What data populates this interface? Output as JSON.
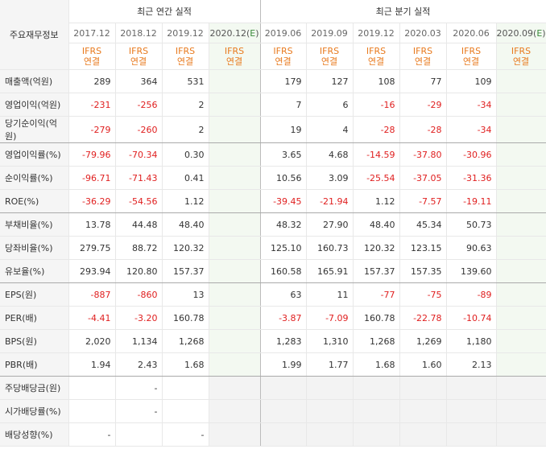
{
  "header": {
    "corner_label": "주요재무정보",
    "annual_title": "최근 연간 실적",
    "quarter_title": "최근 분기 실적",
    "annual_periods": [
      "2017.12",
      "2018.12",
      "2019.12",
      "2020.12(E)"
    ],
    "quarter_periods": [
      "2019.06",
      "2019.09",
      "2019.12",
      "2020.03",
      "2020.06",
      "2020.09(E)"
    ],
    "ifrs_line1": "IFRS",
    "ifrs_line2": "연결"
  },
  "rows": [
    {
      "label": "매출액(억원)",
      "values": [
        "289",
        "364",
        "531",
        "",
        "179",
        "127",
        "108",
        "77",
        "109",
        ""
      ]
    },
    {
      "label": "영업이익(억원)",
      "values": [
        "-231",
        "-256",
        "2",
        "",
        "7",
        "6",
        "-16",
        "-29",
        "-34",
        ""
      ]
    },
    {
      "label": "당기순이익(억원)",
      "values": [
        "-279",
        "-260",
        "2",
        "",
        "19",
        "4",
        "-28",
        "-28",
        "-34",
        ""
      ]
    },
    {
      "label": "영업이익률(%)",
      "values": [
        "-79.96",
        "-70.34",
        "0.30",
        "",
        "3.65",
        "4.68",
        "-14.59",
        "-37.80",
        "-30.96",
        ""
      ]
    },
    {
      "label": "순이익률(%)",
      "values": [
        "-96.71",
        "-71.43",
        "0.41",
        "",
        "10.56",
        "3.09",
        "-25.54",
        "-37.05",
        "-31.36",
        ""
      ]
    },
    {
      "label": "ROE(%)",
      "values": [
        "-36.29",
        "-54.56",
        "1.12",
        "",
        "-39.45",
        "-21.94",
        "1.12",
        "-7.57",
        "-19.11",
        ""
      ]
    },
    {
      "label": "부채비율(%)",
      "values": [
        "13.78",
        "44.48",
        "48.40",
        "",
        "48.32",
        "27.90",
        "48.40",
        "45.34",
        "50.73",
        ""
      ]
    },
    {
      "label": "당좌비율(%)",
      "values": [
        "279.75",
        "88.72",
        "120.32",
        "",
        "125.10",
        "160.73",
        "120.32",
        "123.15",
        "90.63",
        ""
      ]
    },
    {
      "label": "유보율(%)",
      "values": [
        "293.94",
        "120.80",
        "157.37",
        "",
        "160.58",
        "165.91",
        "157.37",
        "157.35",
        "139.60",
        ""
      ]
    },
    {
      "label": "EPS(원)",
      "values": [
        "-887",
        "-860",
        "13",
        "",
        "63",
        "11",
        "-77",
        "-75",
        "-89",
        ""
      ]
    },
    {
      "label": "PER(배)",
      "values": [
        "-4.41",
        "-3.20",
        "160.78",
        "",
        "-3.87",
        "-7.09",
        "160.78",
        "-22.78",
        "-10.74",
        ""
      ]
    },
    {
      "label": "BPS(원)",
      "values": [
        "2,020",
        "1,134",
        "1,268",
        "",
        "1,283",
        "1,310",
        "1,268",
        "1,269",
        "1,180",
        ""
      ]
    },
    {
      "label": "PBR(배)",
      "values": [
        "1.94",
        "2.43",
        "1.68",
        "",
        "1.99",
        "1.77",
        "1.68",
        "1.60",
        "2.13",
        ""
      ]
    },
    {
      "label": "주당배당금(원)",
      "values": [
        "",
        "-",
        "",
        "",
        "",
        "",
        "",
        "",
        "",
        ""
      ]
    },
    {
      "label": "시가배당률(%)",
      "values": [
        "",
        "-",
        "",
        "",
        "",
        "",
        "",
        "",
        "",
        ""
      ]
    },
    {
      "label": "배당성향(%)",
      "values": [
        "-",
        "",
        "-",
        "",
        "",
        "",
        "",
        "",
        "",
        ""
      ]
    }
  ],
  "colors": {
    "negative": "#e02020",
    "ifrs": "#e87a1e",
    "estimate_bg": "#f3f9f1",
    "label_bg": "#f5f5f5"
  }
}
